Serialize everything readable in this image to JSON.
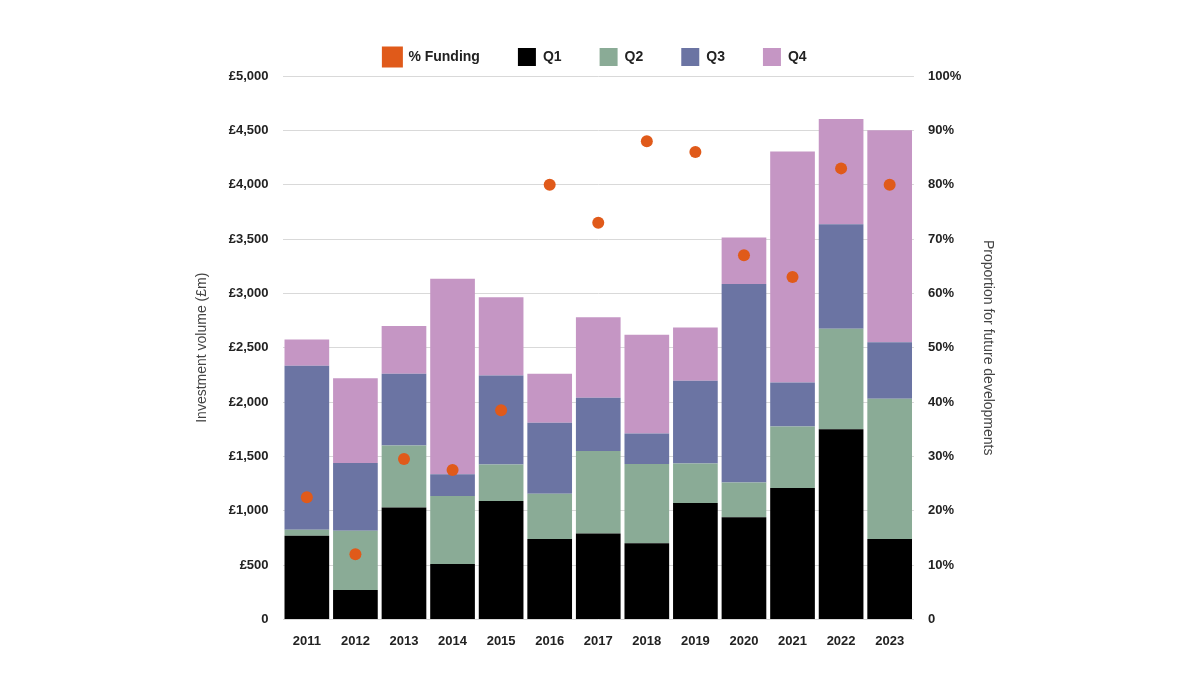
{
  "chart_data": {
    "type": "bar",
    "stacked": true,
    "grid": true,
    "legend": "top",
    "y_label": "Investment volume (£m)",
    "y2_label": "Proportion for future developments",
    "categories": [
      "2011",
      "2012",
      "2013",
      "2014",
      "2015",
      "2016",
      "2017",
      "2018",
      "2019",
      "2020",
      "2021",
      "2022",
      "2023"
    ],
    "ylim": [
      0,
      5000
    ],
    "yticks": [
      0,
      {
        "value": 500,
        "label": "£500"
      },
      {
        "value": 1000,
        "label": "£1,000"
      },
      {
        "value": 1500,
        "label": "£1,500"
      },
      {
        "value": 2000,
        "label": "£2,000"
      },
      {
        "value": 2500,
        "label": "£2,500"
      },
      {
        "value": 3000,
        "label": "£3,000"
      },
      {
        "value": 3500,
        "label": "£3,500"
      },
      {
        "value": 4000,
        "label": "£4,000"
      },
      {
        "value": 4500,
        "label": "£4,500"
      },
      {
        "value": 5000,
        "label": "£5,000"
      }
    ],
    "y2lim": [
      0,
      100
    ],
    "y2ticks": [
      0,
      {
        "value": 10,
        "label": "10%"
      },
      {
        "value": 20,
        "label": "20%"
      },
      {
        "value": 30,
        "label": "30%"
      },
      {
        "value": 40,
        "label": "40%"
      },
      {
        "value": 50,
        "label": "50%"
      },
      {
        "value": 60,
        "label": "60%"
      },
      {
        "value": 70,
        "label": "70%"
      },
      {
        "value": 80,
        "label": "80%"
      },
      {
        "value": 90,
        "label": "90%"
      },
      {
        "value": 100,
        "label": "100%"
      }
    ],
    "series": [
      {
        "name": "Q1",
        "color": "#000000",
        "values": [
          770,
          270,
          1030,
          510,
          1090,
          740,
          790,
          700,
          1070,
          940,
          1210,
          1750,
          740
        ]
      },
      {
        "name": "Q2",
        "color": "#8aab96",
        "values": [
          55,
          545,
          570,
          625,
          335,
          415,
          760,
          730,
          365,
          320,
          565,
          925,
          1290
        ]
      },
      {
        "name": "Q3",
        "color": "#6b74a3",
        "values": [
          1510,
          625,
          660,
          200,
          820,
          655,
          490,
          280,
          760,
          1825,
          405,
          960,
          520
        ]
      },
      {
        "name": "Q4",
        "color": "#c596c4",
        "values": [
          240,
          780,
          440,
          1800,
          720,
          450,
          740,
          910,
          490,
          430,
          2125,
          970,
          1950
        ]
      },
      {
        "name": "% Funding",
        "color": "#e05a1a",
        "type": "scatter",
        "axis": "y2",
        "values": [
          22.5,
          12,
          29.5,
          27.5,
          38.5,
          80,
          73,
          88,
          86,
          67,
          63,
          83,
          80
        ]
      }
    ]
  }
}
